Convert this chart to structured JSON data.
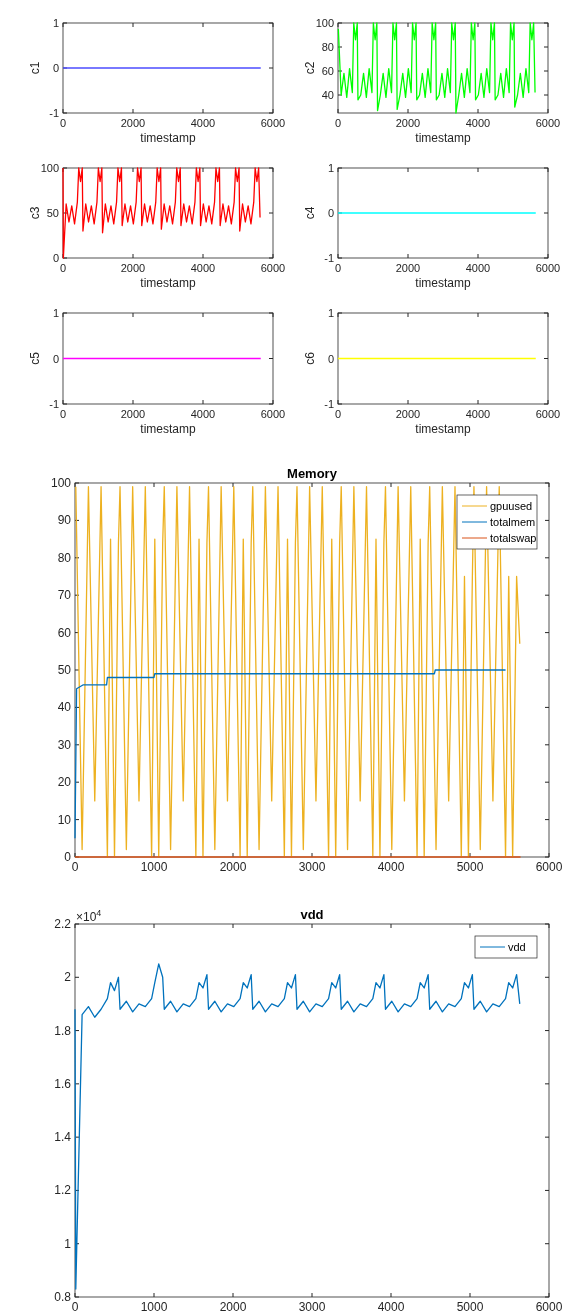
{
  "chart_data": [
    {
      "type": "line",
      "xlabel": "timestamp",
      "ylabel": "c1",
      "x": [
        0,
        5650
      ],
      "values": [
        0,
        0
      ],
      "color": "#4d4dff",
      "xlim": [
        0,
        6000
      ],
      "xticks": [
        0,
        2000,
        4000,
        6000
      ],
      "ylim": [
        -1,
        1
      ],
      "yticks": [
        -1,
        0,
        1
      ]
    },
    {
      "type": "line",
      "xlabel": "timestamp",
      "ylabel": "c2",
      "x": [
        10,
        90,
        170,
        250,
        330,
        410,
        450,
        500,
        550,
        570,
        650,
        730,
        810,
        890,
        970,
        1010,
        1060,
        1110,
        1130,
        1210,
        1290,
        1370,
        1450,
        1530,
        1570,
        1620,
        1670,
        1690,
        1770,
        1850,
        1930,
        2010,
        2090,
        2130,
        2180,
        2230,
        2250,
        2330,
        2410,
        2490,
        2570,
        2650,
        2690,
        2740,
        2790,
        2810,
        2890,
        2970,
        3050,
        3130,
        3210,
        3250,
        3300,
        3350,
        3370,
        3450,
        3530,
        3610,
        3690,
        3770,
        3810,
        3860,
        3910,
        3930,
        4010,
        4090,
        4170,
        4250,
        4330,
        4370,
        4420,
        4470,
        4490,
        4570,
        4650,
        4730,
        4810,
        4890,
        4930,
        4980,
        5030,
        5050,
        5130,
        5210,
        5290,
        5370,
        5450,
        5490,
        5540,
        5590,
        5630
      ],
      "values": [
        95,
        40,
        58,
        38,
        62,
        42,
        100,
        86,
        100,
        36,
        40,
        58,
        38,
        62,
        42,
        100,
        86,
        100,
        27,
        40,
        58,
        38,
        62,
        42,
        100,
        86,
        100,
        28,
        40,
        58,
        38,
        62,
        42,
        100,
        86,
        100,
        36,
        40,
        58,
        38,
        62,
        42,
        100,
        86,
        100,
        36,
        40,
        58,
        38,
        62,
        42,
        100,
        86,
        100,
        25,
        40,
        58,
        38,
        62,
        42,
        100,
        86,
        100,
        36,
        40,
        58,
        38,
        62,
        42,
        100,
        86,
        100,
        36,
        40,
        58,
        38,
        62,
        42,
        100,
        86,
        100,
        30,
        40,
        58,
        38,
        62,
        42,
        100,
        86,
        100,
        42
      ],
      "color": "#00ff00",
      "xlim": [
        0,
        6000
      ],
      "xticks": [
        0,
        2000,
        4000,
        6000
      ],
      "ylim": [
        25,
        100
      ],
      "yticks": [
        40,
        60,
        80,
        100
      ]
    },
    {
      "type": "line",
      "xlabel": "timestamp",
      "ylabel": "c3",
      "x": [
        0,
        10,
        90,
        170,
        250,
        330,
        410,
        450,
        500,
        550,
        570,
        650,
        730,
        810,
        890,
        970,
        1010,
        1060,
        1110,
        1130,
        1210,
        1290,
        1370,
        1450,
        1530,
        1570,
        1620,
        1670,
        1690,
        1770,
        1850,
        1930,
        2010,
        2090,
        2130,
        2180,
        2230,
        2250,
        2330,
        2410,
        2490,
        2570,
        2650,
        2690,
        2740,
        2790,
        2810,
        2890,
        2970,
        3050,
        3130,
        3210,
        3250,
        3300,
        3350,
        3370,
        3450,
        3530,
        3610,
        3690,
        3770,
        3810,
        3860,
        3910,
        3930,
        4010,
        4090,
        4170,
        4250,
        4330,
        4370,
        4420,
        4470,
        4490,
        4570,
        4650,
        4730,
        4810,
        4890,
        4930,
        4980,
        5030,
        5050,
        5130,
        5210,
        5290,
        5370,
        5450,
        5490,
        5540,
        5590,
        5630
      ],
      "values": [
        100,
        0,
        60,
        40,
        58,
        38,
        62,
        100,
        85,
        100,
        30,
        60,
        40,
        58,
        38,
        62,
        100,
        85,
        100,
        28,
        60,
        40,
        58,
        38,
        62,
        100,
        85,
        100,
        36,
        60,
        40,
        58,
        38,
        62,
        100,
        85,
        100,
        36,
        60,
        40,
        58,
        38,
        62,
        100,
        85,
        100,
        32,
        60,
        40,
        58,
        38,
        62,
        100,
        85,
        100,
        36,
        60,
        40,
        58,
        38,
        62,
        100,
        85,
        100,
        36,
        60,
        40,
        58,
        38,
        62,
        100,
        85,
        100,
        36,
        60,
        40,
        58,
        38,
        62,
        100,
        85,
        100,
        30,
        60,
        40,
        58,
        38,
        62,
        100,
        85,
        100,
        45
      ],
      "color": "#ff0000",
      "xlim": [
        0,
        6000
      ],
      "xticks": [
        0,
        2000,
        4000,
        6000
      ],
      "ylim": [
        0,
        100
      ],
      "yticks": [
        0,
        50,
        100
      ]
    },
    {
      "type": "line",
      "xlabel": "timestamp",
      "ylabel": "c4",
      "x": [
        0,
        5650
      ],
      "values": [
        0,
        0
      ],
      "color": "#00ffff",
      "xlim": [
        0,
        6000
      ],
      "xticks": [
        0,
        2000,
        4000,
        6000
      ],
      "ylim": [
        -1,
        1
      ],
      "yticks": [
        -1,
        0,
        1
      ]
    },
    {
      "type": "line",
      "xlabel": "timestamp",
      "ylabel": "c5",
      "x": [
        0,
        5650
      ],
      "values": [
        0,
        0
      ],
      "color": "#ff00ff",
      "xlim": [
        0,
        6000
      ],
      "xticks": [
        0,
        2000,
        4000,
        6000
      ],
      "ylim": [
        -1,
        1
      ],
      "yticks": [
        -1,
        0,
        1
      ]
    },
    {
      "type": "line",
      "xlabel": "timestamp",
      "ylabel": "c6",
      "x": [
        0,
        5650
      ],
      "values": [
        0,
        0
      ],
      "color": "#ffff00",
      "xlim": [
        0,
        6000
      ],
      "xticks": [
        0,
        2000,
        4000,
        6000
      ],
      "ylim": [
        -1,
        1
      ],
      "yticks": [
        -1,
        0,
        1
      ]
    },
    {
      "type": "line",
      "title": "Memory",
      "legend": "top right",
      "xlim": [
        0,
        6000
      ],
      "xticks": [
        0,
        1000,
        2000,
        3000,
        4000,
        5000,
        6000
      ],
      "ylim": [
        0,
        100
      ],
      "yticks": [
        0,
        10,
        20,
        30,
        40,
        50,
        60,
        70,
        80,
        90,
        100
      ],
      "series": [
        {
          "name": "gpuused",
          "color": "#edb120",
          "x": [
            10,
            90,
            170,
            250,
            330,
            410,
            450,
            500,
            550,
            570,
            650,
            730,
            810,
            890,
            970,
            1010,
            1060,
            1110,
            1130,
            1210,
            1290,
            1370,
            1450,
            1530,
            1570,
            1620,
            1670,
            1690,
            1770,
            1850,
            1930,
            2010,
            2090,
            2130,
            2180,
            2230,
            2250,
            2330,
            2410,
            2490,
            2570,
            2650,
            2690,
            2740,
            2790,
            2810,
            2890,
            2970,
            3050,
            3130,
            3210,
            3250,
            3300,
            3350,
            3370,
            3450,
            3530,
            3610,
            3690,
            3770,
            3810,
            3860,
            3910,
            3930,
            4010,
            4090,
            4170,
            4250,
            4330,
            4370,
            4420,
            4470,
            4490,
            4570,
            4650,
            4730,
            4810,
            4890,
            4930,
            4980,
            5030,
            5050,
            5130,
            5210,
            5290,
            5370,
            5450,
            5490,
            5540,
            5590,
            5630
          ],
          "values": [
            99,
            2,
            99,
            15,
            99,
            0,
            85,
            0,
            84,
            99,
            2,
            99,
            15,
            99,
            0,
            85,
            0,
            84,
            99,
            2,
            99,
            15,
            99,
            0,
            85,
            0,
            84,
            99,
            2,
            99,
            15,
            99,
            0,
            85,
            0,
            84,
            99,
            2,
            99,
            15,
            99,
            0,
            85,
            0,
            84,
            99,
            2,
            99,
            15,
            99,
            0,
            85,
            0,
            84,
            99,
            2,
            99,
            15,
            99,
            0,
            85,
            0,
            84,
            99,
            2,
            99,
            15,
            99,
            0,
            85,
            0,
            84,
            99,
            2,
            99,
            15,
            99,
            0,
            75,
            0,
            75,
            99,
            2,
            99,
            15,
            99,
            0,
            75,
            0,
            75,
            57
          ]
        },
        {
          "name": "totalmem",
          "color": "#0072bd",
          "x": [
            0,
            20,
            100,
            400,
            410,
            1000,
            1010,
            4550,
            4560,
            5450
          ],
          "values": [
            5,
            45,
            46,
            46,
            48,
            48,
            49,
            49,
            50,
            50
          ]
        },
        {
          "name": "totalswap",
          "color": "#d95319",
          "x": [
            0,
            5640
          ],
          "values": [
            0,
            0
          ]
        }
      ]
    },
    {
      "type": "line",
      "title": "vdd",
      "legend": "top right",
      "annotations": [
        "×10$^{4}$"
      ],
      "xlim": [
        0,
        6000
      ],
      "xticks": [
        0,
        1000,
        2000,
        3000,
        4000,
        5000,
        6000
      ],
      "ylim": [
        0.8,
        2.2
      ],
      "yticks": [
        0.8,
        1,
        1.2,
        1.4,
        1.6,
        1.8,
        2,
        2.2
      ],
      "series": [
        {
          "name": "vdd",
          "color": "#0072bd",
          "x": [
            0,
            10,
            90,
            170,
            250,
            330,
            410,
            450,
            500,
            550,
            570,
            650,
            730,
            810,
            890,
            970,
            1010,
            1060,
            1110,
            1130,
            1210,
            1290,
            1370,
            1450,
            1530,
            1570,
            1620,
            1670,
            1690,
            1770,
            1850,
            1930,
            2010,
            2090,
            2130,
            2180,
            2230,
            2250,
            2330,
            2410,
            2490,
            2570,
            2650,
            2690,
            2740,
            2790,
            2810,
            2890,
            2970,
            3050,
            3130,
            3210,
            3250,
            3300,
            3350,
            3370,
            3450,
            3530,
            3610,
            3690,
            3770,
            3810,
            3860,
            3910,
            3930,
            4010,
            4090,
            4170,
            4250,
            4330,
            4370,
            4420,
            4470,
            4490,
            4570,
            4650,
            4730,
            4810,
            4890,
            4930,
            4980,
            5030,
            5050,
            5130,
            5210,
            5290,
            5370,
            5450,
            5490,
            5540,
            5590,
            5630
          ],
          "values": [
            1.88,
            0.83,
            1.86,
            1.89,
            1.85,
            1.88,
            1.92,
            1.98,
            1.95,
            2,
            1.88,
            1.91,
            1.87,
            1.9,
            1.89,
            1.92,
            1.98,
            2.05,
            2,
            1.88,
            1.91,
            1.87,
            1.9,
            1.89,
            1.92,
            1.98,
            1.96,
            2.01,
            1.88,
            1.91,
            1.87,
            1.9,
            1.89,
            1.92,
            1.98,
            1.96,
            2.01,
            1.88,
            1.91,
            1.87,
            1.9,
            1.89,
            1.92,
            1.98,
            1.96,
            2.01,
            1.88,
            1.91,
            1.87,
            1.9,
            1.89,
            1.92,
            1.98,
            1.96,
            2.01,
            1.88,
            1.91,
            1.87,
            1.9,
            1.89,
            1.92,
            1.98,
            1.96,
            2.01,
            1.88,
            1.91,
            1.87,
            1.9,
            1.89,
            1.92,
            1.98,
            1.96,
            2.01,
            1.88,
            1.91,
            1.87,
            1.9,
            1.89,
            1.92,
            1.98,
            1.96,
            2.01,
            1.88,
            1.91,
            1.87,
            1.9,
            1.89,
            1.92,
            1.98,
            1.96,
            2.01,
            1.9
          ]
        }
      ]
    }
  ]
}
